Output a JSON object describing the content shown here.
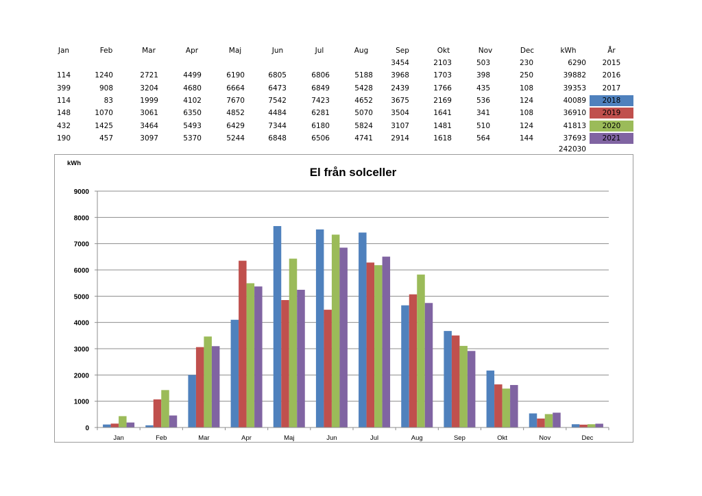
{
  "table": {
    "months": [
      "Jan",
      "Feb",
      "Mar",
      "Apr",
      "Maj",
      "Jun",
      "Jul",
      "Aug",
      "Sep",
      "Okt",
      "Nov",
      "Dec"
    ],
    "kwh_header": "kWh",
    "year_header": "År",
    "rows": [
      {
        "values": [
          "",
          "",
          "",
          "",
          "",
          "",
          "",
          "",
          "3454",
          "2103",
          "503",
          "230"
        ],
        "kwh": "6290",
        "year": "2015",
        "color": ""
      },
      {
        "values": [
          "114",
          "1240",
          "2721",
          "4499",
          "6190",
          "6805",
          "6806",
          "5188",
          "3968",
          "1703",
          "398",
          "250"
        ],
        "kwh": "39882",
        "year": "2016",
        "color": ""
      },
      {
        "values": [
          "399",
          "908",
          "3204",
          "4680",
          "6664",
          "6473",
          "6849",
          "5428",
          "2439",
          "1766",
          "435",
          "108"
        ],
        "kwh": "39353",
        "year": "2017",
        "color": ""
      },
      {
        "values": [
          "114",
          "83",
          "1999",
          "4102",
          "7670",
          "7542",
          "7423",
          "4652",
          "3675",
          "2169",
          "536",
          "124"
        ],
        "kwh": "40089",
        "year": "2018",
        "color": "#4f81bd"
      },
      {
        "values": [
          "148",
          "1070",
          "3061",
          "6350",
          "4852",
          "4484",
          "6281",
          "5070",
          "3504",
          "1641",
          "341",
          "108"
        ],
        "kwh": "36910",
        "year": "2019",
        "color": "#c0504d"
      },
      {
        "values": [
          "432",
          "1425",
          "3464",
          "5493",
          "6429",
          "7344",
          "6180",
          "5824",
          "3107",
          "1481",
          "510",
          "124"
        ],
        "kwh": "41813",
        "year": "2020",
        "color": "#9bbb59"
      },
      {
        "values": [
          "190",
          "457",
          "3097",
          "5370",
          "5244",
          "6848",
          "6506",
          "4741",
          "2914",
          "1618",
          "564",
          "144"
        ],
        "kwh": "37693",
        "year": "2021",
        "color": "#8064a2"
      }
    ],
    "total": "242030"
  },
  "chart_data": {
    "type": "bar",
    "title": "El från solceller",
    "ylabel": "kWh",
    "xlabel": "",
    "categories": [
      "Jan",
      "Feb",
      "Mar",
      "Apr",
      "Maj",
      "Jun",
      "Jul",
      "Aug",
      "Sep",
      "Okt",
      "Nov",
      "Dec"
    ],
    "ylim": [
      0,
      9000
    ],
    "yticks": [
      0,
      1000,
      2000,
      3000,
      4000,
      5000,
      6000,
      7000,
      8000,
      9000
    ],
    "grid": true,
    "legend": "none",
    "series": [
      {
        "values": [
          114,
          83,
          1999,
          4102,
          7670,
          7542,
          7423,
          4652,
          3675,
          2169,
          536,
          124
        ],
        "color": "#4f81bd"
      },
      {
        "values": [
          148,
          1070,
          3061,
          6350,
          4852,
          4484,
          6281,
          5070,
          3504,
          1641,
          341,
          108
        ],
        "color": "#c0504d"
      },
      {
        "values": [
          432,
          1425,
          3464,
          5493,
          6429,
          7344,
          6180,
          5824,
          3107,
          1481,
          510,
          124
        ],
        "color": "#9bbb59"
      },
      {
        "values": [
          190,
          457,
          3097,
          5370,
          5244,
          6848,
          6506,
          4741,
          2914,
          1618,
          564,
          144
        ],
        "color": "#8064a2"
      }
    ]
  }
}
